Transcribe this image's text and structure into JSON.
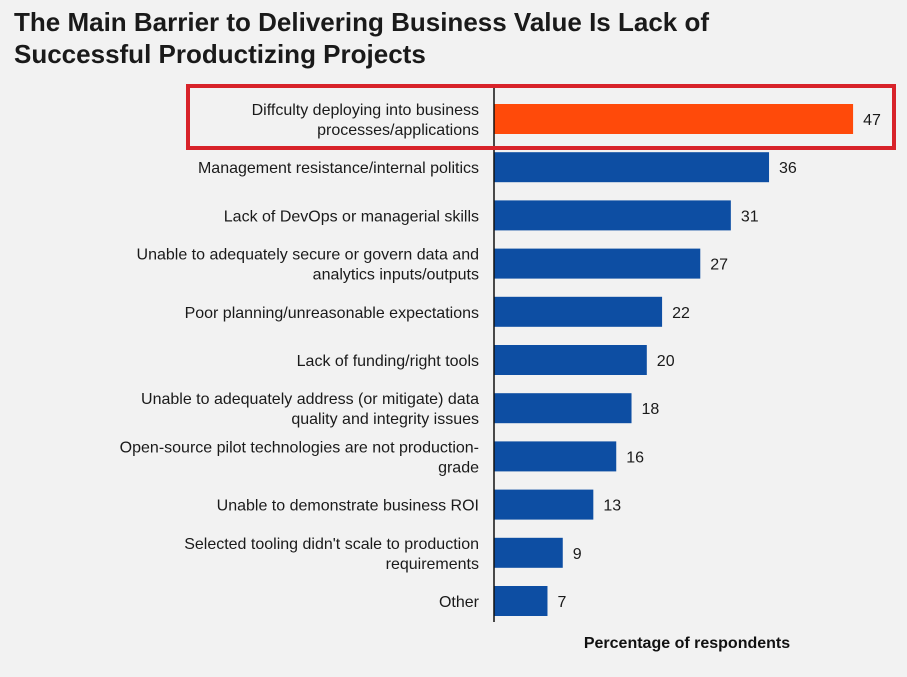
{
  "title_lines": [
    "The Main Barrier to Delivering Business Value Is Lack of",
    "Successful Productizing Projects"
  ],
  "colors": {
    "bar": "#0d4ea3",
    "highlight_bar": "#ff4a0a",
    "highlight_border": "#d8232a",
    "axis": "#111111"
  },
  "chart_data": {
    "type": "bar",
    "orientation": "horizontal",
    "title": "The Main Barrier to Delivering Business Value Is Lack of Successful Productizing Projects",
    "xlabel": "Percentage of respondents",
    "ylabel": "",
    "xlim": [
      0,
      50
    ],
    "grid": false,
    "highlighted_index": 0,
    "categories": [
      [
        "Diffculty deploying into business",
        "processes/applications"
      ],
      [
        "Management resistance/internal politics"
      ],
      [
        "Lack of DevOps or managerial skills"
      ],
      [
        "Unable to adequately secure or govern data and",
        "analytics inputs/outputs"
      ],
      [
        "Poor planning/unreasonable expectations"
      ],
      [
        "Lack of funding/right tools"
      ],
      [
        "Unable to adequately address (or mitigate) data",
        "quality and integrity issues"
      ],
      [
        "Open-source pilot technologies are not production-",
        "grade"
      ],
      [
        "Unable to demonstrate business ROI"
      ],
      [
        "Selected tooling didn't scale to production",
        "requirements"
      ],
      [
        "Other"
      ]
    ],
    "values": [
      47,
      36,
      31,
      27,
      22,
      20,
      18,
      16,
      13,
      9,
      7
    ]
  }
}
